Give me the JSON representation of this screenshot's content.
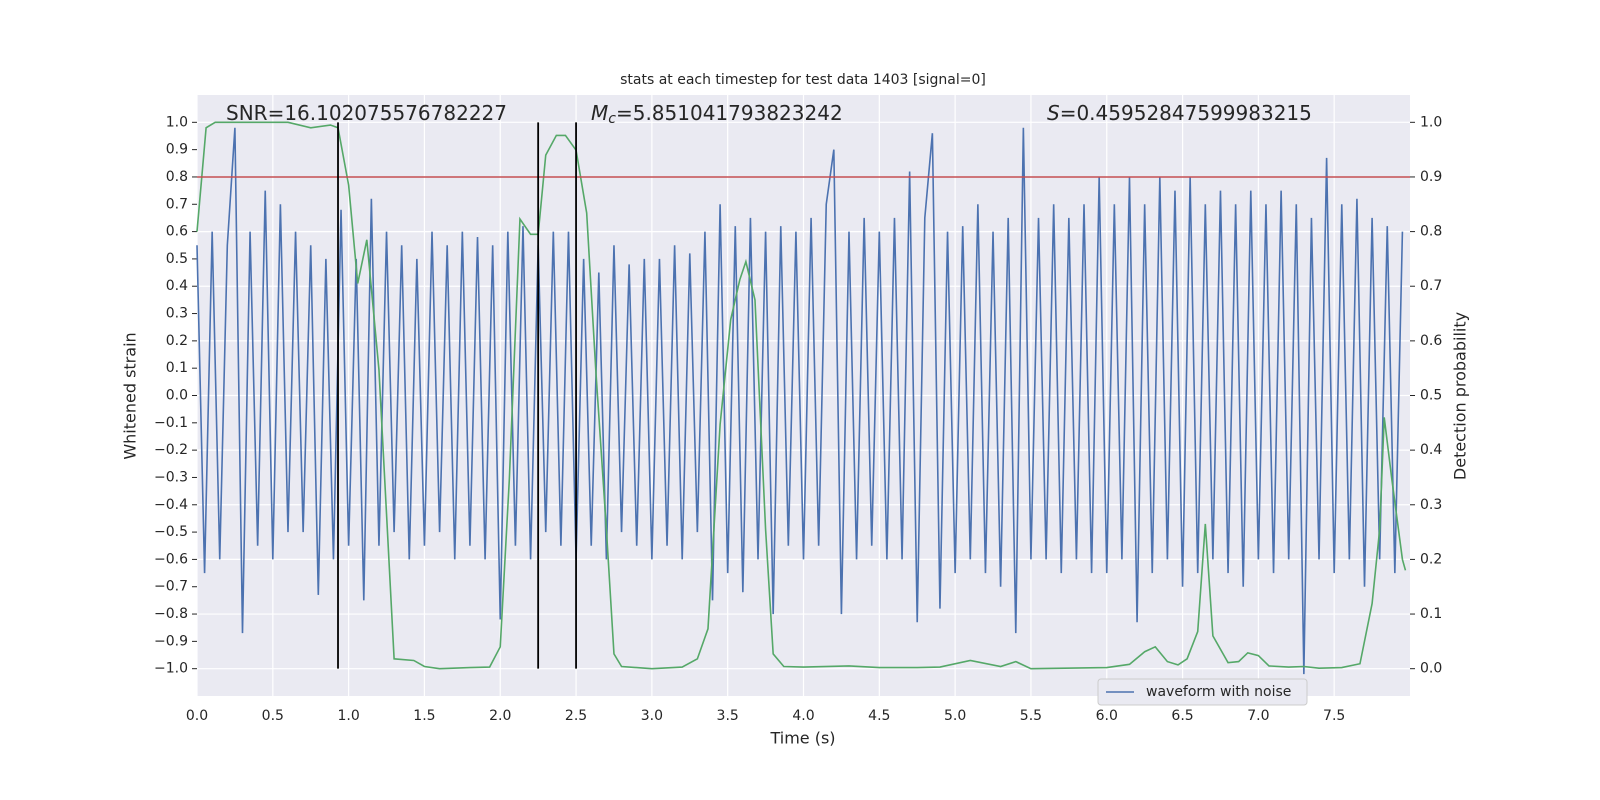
{
  "chart_data": {
    "type": "line",
    "title": "stats at each timestep for test data 1403 [signal=0]",
    "xlabel": "Time (s)",
    "ylabel": "Whitened strain",
    "y2label": "Detection probability",
    "xlim": [
      0,
      8
    ],
    "ylim": [
      -1.1,
      1.1
    ],
    "y2lim": [
      -0.05,
      1.05
    ],
    "xticks": [
      {
        "value": 0,
        "label": "0.0"
      },
      {
        "value": 0.5,
        "label": "0.5"
      },
      {
        "value": 1,
        "label": "1.0"
      },
      {
        "value": 1.5,
        "label": "1.5"
      },
      {
        "value": 2,
        "label": "2.0"
      },
      {
        "value": 2.5,
        "label": "2.5"
      },
      {
        "value": 3,
        "label": "3.0"
      },
      {
        "value": 3.5,
        "label": "3.5"
      },
      {
        "value": 4,
        "label": "4.0"
      },
      {
        "value": 4.5,
        "label": "4.5"
      },
      {
        "value": 5,
        "label": "5.0"
      },
      {
        "value": 5.5,
        "label": "5.5"
      },
      {
        "value": 6,
        "label": "6.0"
      },
      {
        "value": 6.5,
        "label": "6.5"
      },
      {
        "value": 7,
        "label": "7.0"
      },
      {
        "value": 7.5,
        "label": "7.5"
      }
    ],
    "yticks": [
      {
        "value": 1,
        "label": "1.0"
      },
      {
        "value": 0.9,
        "label": "0.9"
      },
      {
        "value": 0.8,
        "label": "0.8"
      },
      {
        "value": 0.7,
        "label": "0.7"
      },
      {
        "value": 0.6,
        "label": "0.6"
      },
      {
        "value": 0.5,
        "label": "0.5"
      },
      {
        "value": 0.4,
        "label": "0.4"
      },
      {
        "value": 0.3,
        "label": "0.3"
      },
      {
        "value": 0.2,
        "label": "0.2"
      },
      {
        "value": 0.1,
        "label": "0.1"
      },
      {
        "value": 0,
        "label": "0.0"
      },
      {
        "value": -0.1,
        "label": "−0.1"
      },
      {
        "value": -0.2,
        "label": "−0.2"
      },
      {
        "value": -0.3,
        "label": "−0.3"
      },
      {
        "value": -0.4,
        "label": "−0.4"
      },
      {
        "value": -0.5,
        "label": "−0.5"
      },
      {
        "value": -0.6,
        "label": "−0.6"
      },
      {
        "value": -0.7,
        "label": "−0.7"
      },
      {
        "value": -0.8,
        "label": "−0.8"
      },
      {
        "value": -0.9,
        "label": "−0.9"
      },
      {
        "value": -1,
        "label": "−1.0"
      }
    ],
    "y2ticks": [
      {
        "value": 1,
        "label": "1.0"
      },
      {
        "value": 0.9,
        "label": "0.9"
      },
      {
        "value": 0.8,
        "label": "0.8"
      },
      {
        "value": 0.7,
        "label": "0.7"
      },
      {
        "value": 0.6,
        "label": "0.6"
      },
      {
        "value": 0.5,
        "label": "0.5"
      },
      {
        "value": 0.4,
        "label": "0.4"
      },
      {
        "value": 0.3,
        "label": "0.3"
      },
      {
        "value": 0.2,
        "label": "0.2"
      },
      {
        "value": 0.1,
        "label": "0.1"
      },
      {
        "value": 0,
        "label": "0.0"
      }
    ],
    "grid": {
      "x": true,
      "y2": true
    },
    "legend": "lower right",
    "series": [
      {
        "name": "waveform with noise",
        "color": "#4c72b0",
        "axis": "y",
        "x": [
          0,
          0.05,
          0.1,
          0.15,
          0.2,
          0.25,
          0.3,
          0.35,
          0.4,
          0.45,
          0.5,
          0.55,
          0.6,
          0.65,
          0.7,
          0.75,
          0.8,
          0.85,
          0.9,
          0.95,
          1,
          1.05,
          1.1,
          1.15,
          1.2,
          1.25,
          1.3,
          1.35,
          1.4,
          1.45,
          1.5,
          1.55,
          1.6,
          1.65,
          1.7,
          1.75,
          1.8,
          1.85,
          1.9,
          1.95,
          2,
          2.05,
          2.1,
          2.15,
          2.2,
          2.25,
          2.3,
          2.35,
          2.4,
          2.45,
          2.5,
          2.55,
          2.6,
          2.65,
          2.7,
          2.75,
          2.8,
          2.85,
          2.9,
          2.95,
          3,
          3.05,
          3.1,
          3.15,
          3.2,
          3.25,
          3.3,
          3.35,
          3.4,
          3.45,
          3.5,
          3.55,
          3.6,
          3.65,
          3.7,
          3.75,
          3.8,
          3.85,
          3.9,
          3.95,
          4,
          4.05,
          4.1,
          4.15,
          4.2,
          4.25,
          4.3,
          4.35,
          4.4,
          4.45,
          4.5,
          4.55,
          4.6,
          4.65,
          4.7,
          4.75,
          4.8,
          4.85,
          4.9,
          4.95,
          5,
          5.05,
          5.1,
          5.15,
          5.2,
          5.25,
          5.3,
          5.35,
          5.4,
          5.45,
          5.5,
          5.55,
          5.6,
          5.65,
          5.7,
          5.75,
          5.8,
          5.85,
          5.9,
          5.95,
          6,
          6.05,
          6.1,
          6.15,
          6.2,
          6.25,
          6.3,
          6.35,
          6.4,
          6.45,
          6.5,
          6.55,
          6.6,
          6.65,
          6.7,
          6.75,
          6.8,
          6.85,
          6.9,
          6.95,
          7,
          7.05,
          7.1,
          7.15,
          7.2,
          7.25,
          7.3,
          7.35,
          7.4,
          7.45,
          7.5,
          7.55,
          7.6,
          7.65,
          7.7,
          7.75,
          7.8,
          7.85,
          7.9,
          7.95
        ],
        "values": [
          0.55,
          -0.65,
          0.6,
          -0.6,
          0.55,
          0.98,
          -0.87,
          0.6,
          -0.55,
          0.75,
          -0.6,
          0.7,
          -0.5,
          0.6,
          -0.5,
          0.55,
          -0.73,
          0.5,
          -0.6,
          0.68,
          -0.55,
          0.5,
          -0.75,
          0.72,
          -0.55,
          0.6,
          -0.5,
          0.55,
          -0.6,
          0.5,
          -0.55,
          0.6,
          -0.5,
          0.55,
          -0.6,
          0.6,
          -0.55,
          0.58,
          -0.6,
          0.55,
          -0.82,
          0.6,
          -0.55,
          0.62,
          -0.6,
          0.55,
          -0.5,
          0.6,
          -0.55,
          0.6,
          -0.6,
          0.5,
          -0.55,
          0.45,
          -0.6,
          0.55,
          -0.5,
          0.48,
          -0.55,
          0.5,
          -0.6,
          0.5,
          -0.55,
          0.55,
          -0.6,
          0.52,
          -0.5,
          0.6,
          -0.75,
          0.7,
          -0.65,
          0.62,
          -0.72,
          0.65,
          -0.6,
          0.6,
          -0.8,
          0.62,
          -0.55,
          0.6,
          -0.6,
          0.65,
          -0.55,
          0.7,
          0.9,
          -0.8,
          0.6,
          -0.6,
          0.65,
          -0.55,
          0.6,
          -0.6,
          0.65,
          -0.6,
          0.82,
          -0.83,
          0.65,
          0.96,
          -0.78,
          0.6,
          -0.65,
          0.62,
          -0.6,
          0.7,
          -0.65,
          0.6,
          -0.7,
          0.65,
          -0.87,
          0.98,
          -0.6,
          0.65,
          -0.6,
          0.7,
          -0.65,
          0.65,
          -0.6,
          0.7,
          -0.65,
          0.8,
          -0.65,
          0.7,
          -0.6,
          0.8,
          -0.83,
          0.7,
          -0.65,
          0.8,
          -0.6,
          0.75,
          -0.7,
          0.8,
          -0.65,
          0.7,
          -0.6,
          0.75,
          -0.65,
          0.7,
          -0.7,
          0.75,
          -0.6,
          0.7,
          -0.65,
          0.75,
          -0.6,
          0.7,
          -1.02,
          0.65,
          -0.6,
          0.87,
          -0.65,
          0.7,
          -0.6,
          0.72,
          -0.7,
          0.65,
          -0.6,
          0.62,
          -0.65,
          0.6
        ]
      },
      {
        "color": "#55a868",
        "axis": "y2",
        "x": [
          0,
          0.06,
          0.12,
          0.6,
          0.75,
          0.88,
          0.93,
          1,
          1.06,
          1.12,
          1.2,
          1.25,
          1.3,
          1.43,
          1.5,
          1.6,
          1.8,
          1.93,
          2,
          2.06,
          2.13,
          2.2,
          2.25,
          2.3,
          2.37,
          2.43,
          2.5,
          2.57,
          2.63,
          2.7,
          2.75,
          2.8,
          3,
          3.2,
          3.3,
          3.37,
          3.45,
          3.52,
          3.58,
          3.62,
          3.68,
          3.75,
          3.8,
          3.87,
          4,
          4.3,
          4.5,
          4.75,
          4.9,
          5.1,
          5.3,
          5.4,
          5.5,
          6,
          6.15,
          6.25,
          6.32,
          6.4,
          6.47,
          6.53,
          6.6,
          6.65,
          6.7,
          6.8,
          6.87,
          6.93,
          7,
          7.07,
          7.2,
          7.3,
          7.4,
          7.55,
          7.67,
          7.75,
          7.8,
          7.83,
          7.88,
          7.95,
          7.97
        ],
        "values": [
          0.8,
          0.99,
          1,
          1,
          0.99,
          0.995,
          0.99,
          0.885,
          0.705,
          0.785,
          0.547,
          0.283,
          0.018,
          0.015,
          0.004,
          0,
          0.002,
          0.003,
          0.04,
          0.347,
          0.823,
          0.795,
          0.795,
          0.94,
          0.976,
          0.976,
          0.949,
          0.834,
          0.547,
          0.255,
          0.027,
          0.004,
          0,
          0.003,
          0.018,
          0.073,
          0.447,
          0.639,
          0.712,
          0.745,
          0.675,
          0.255,
          0.027,
          0.004,
          0.003,
          0.005,
          0.002,
          0.002,
          0.003,
          0.015,
          0.004,
          0.013,
          0,
          0.002,
          0.008,
          0.031,
          0.04,
          0.013,
          0.007,
          0.018,
          0.068,
          0.265,
          0.06,
          0.011,
          0.013,
          0.029,
          0.024,
          0.005,
          0.003,
          0.004,
          0.001,
          0.002,
          0.009,
          0.119,
          0.255,
          0.46,
          0.347,
          0.2,
          0.18
        ]
      }
    ],
    "hline": {
      "y": 0.8,
      "color": "#c44e52"
    },
    "vlines": {
      "x": [
        0.93,
        2.25,
        2.5
      ],
      "ymin": -1,
      "ymax": 1,
      "color": "#000000"
    },
    "annotations": [
      {
        "symbol": "SNR",
        "text": "=16.102075576782227"
      },
      {
        "symbol": "M",
        "subscript": "c",
        "text": "=5.851041793823242"
      },
      {
        "symbol": "S",
        "text": "=0.45952847599983215"
      }
    ]
  }
}
